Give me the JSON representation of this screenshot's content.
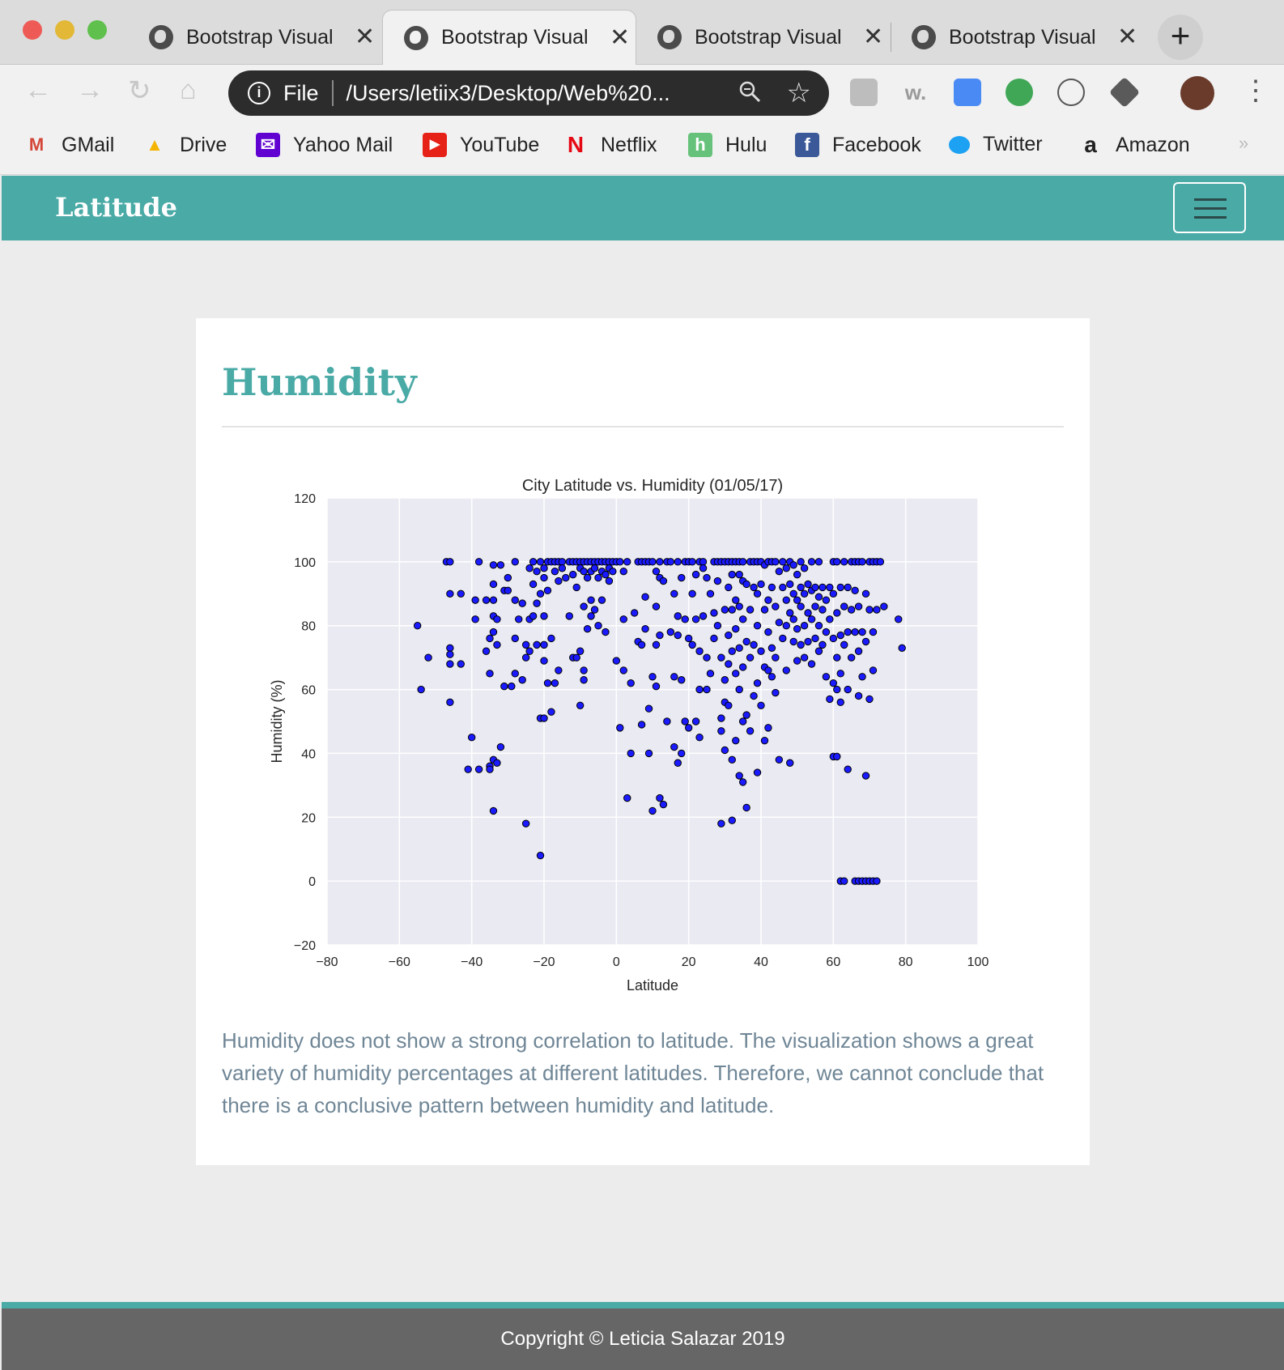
{
  "browser": {
    "tabs": [
      {
        "title": "Bootstrap Visual",
        "active": false
      },
      {
        "title": "Bootstrap Visual",
        "active": true
      },
      {
        "title": "Bootstrap Visual",
        "active": false
      },
      {
        "title": "Bootstrap Visual",
        "active": false
      }
    ],
    "close_glyph": "✕",
    "new_tab_glyph": "+",
    "address": {
      "scheme_label": "File",
      "url": "/Users/letiix3/Desktop/Web%20..."
    },
    "bookmarks": [
      {
        "label": "GMail",
        "icon": "gmail-icon",
        "glyph": "M",
        "color": "#d44638"
      },
      {
        "label": "Drive",
        "icon": "drive-icon",
        "glyph": "▲",
        "color": "#f4b400"
      },
      {
        "label": "Yahoo Mail",
        "icon": "yahoo-mail-icon",
        "glyph": "✉",
        "color": "#6001d2"
      },
      {
        "label": "YouTube",
        "icon": "youtube-icon",
        "glyph": "▶",
        "color": "#e62117"
      },
      {
        "label": "Netflix",
        "icon": "netflix-icon",
        "glyph": "N",
        "color": "#e50914"
      },
      {
        "label": "Hulu",
        "icon": "hulu-icon",
        "glyph": "h",
        "color": "#66c27a"
      },
      {
        "label": "Facebook",
        "icon": "facebook-icon",
        "glyph": "f",
        "color": "#3b5998"
      },
      {
        "label": "Twitter",
        "icon": "twitter-icon",
        "glyph": "🐦",
        "color": "#1da1f2"
      },
      {
        "label": "Amazon",
        "icon": "amazon-icon",
        "glyph": "a",
        "color": "#222222"
      }
    ],
    "bookmarks_overflow": "»"
  },
  "navbar": {
    "brand": "Latitude",
    "color": "#4aaaa6"
  },
  "card": {
    "heading": "Humidity",
    "description": "Humidity does not show a strong correlation to latitude. The visualization shows a great variety of humidity percentages at different latitudes. Therefore, we cannot conclude that there is a conclusive pattern between humidity and latitude."
  },
  "chart_data": {
    "type": "scatter",
    "title": "City Latitude vs. Humidity (01/05/17)",
    "xlabel": "Latitude",
    "ylabel": "Humidity (%)",
    "xlim": [
      -80,
      100
    ],
    "ylim": [
      -20,
      120
    ],
    "xticks": [
      -80,
      -60,
      -40,
      -20,
      0,
      20,
      40,
      60,
      80,
      100
    ],
    "yticks": [
      -20,
      0,
      20,
      40,
      60,
      80,
      100,
      120
    ],
    "grid": true,
    "marker_color": "#1a1aff",
    "points": [
      [
        -55,
        80
      ],
      [
        -54,
        60
      ],
      [
        -52,
        70
      ],
      [
        -47,
        100
      ],
      [
        -46,
        100
      ],
      [
        -46,
        90
      ],
      [
        -46,
        73
      ],
      [
        -46,
        71
      ],
      [
        -46,
        68
      ],
      [
        -46,
        56
      ],
      [
        -43,
        90
      ],
      [
        -43,
        68
      ],
      [
        -41,
        35
      ],
      [
        -40,
        45
      ],
      [
        -39,
        88
      ],
      [
        -39,
        82
      ],
      [
        -38,
        100
      ],
      [
        -38,
        35
      ],
      [
        -36,
        88
      ],
      [
        -36,
        72
      ],
      [
        -35,
        76
      ],
      [
        -35,
        65
      ],
      [
        -35,
        36
      ],
      [
        -35,
        35
      ],
      [
        -34,
        99
      ],
      [
        -34,
        93
      ],
      [
        -34,
        88
      ],
      [
        -34,
        83
      ],
      [
        -34,
        78
      ],
      [
        -34,
        38
      ],
      [
        -34,
        22
      ],
      [
        -33,
        82
      ],
      [
        -33,
        74
      ],
      [
        -33,
        37
      ],
      [
        -32,
        99
      ],
      [
        -32,
        42
      ],
      [
        -31,
        91
      ],
      [
        -31,
        61
      ],
      [
        -30,
        95
      ],
      [
        -30,
        91
      ],
      [
        -29,
        61
      ],
      [
        -28,
        100
      ],
      [
        -28,
        88
      ],
      [
        -28,
        76
      ],
      [
        -28,
        65
      ],
      [
        -27,
        82
      ],
      [
        -26,
        87
      ],
      [
        -26,
        63
      ],
      [
        -25,
        74
      ],
      [
        -25,
        70
      ],
      [
        -25,
        18
      ],
      [
        -24,
        98
      ],
      [
        -24,
        82
      ],
      [
        -24,
        72
      ],
      [
        -23,
        100
      ],
      [
        -23,
        93
      ],
      [
        -23,
        83
      ],
      [
        -22,
        97
      ],
      [
        -22,
        87
      ],
      [
        -22,
        74
      ],
      [
        -21,
        100
      ],
      [
        -21,
        90
      ],
      [
        -21,
        51
      ],
      [
        -21,
        8
      ],
      [
        -20,
        98
      ],
      [
        -20,
        95
      ],
      [
        -20,
        83
      ],
      [
        -20,
        74
      ],
      [
        -20,
        69
      ],
      [
        -20,
        51
      ],
      [
        -19,
        100
      ],
      [
        -19,
        91
      ],
      [
        -19,
        62
      ],
      [
        -18,
        100
      ],
      [
        -18,
        76
      ],
      [
        -18,
        53
      ],
      [
        -17,
        100
      ],
      [
        -17,
        97
      ],
      [
        -17,
        62
      ],
      [
        -16,
        100
      ],
      [
        -16,
        94
      ],
      [
        -16,
        66
      ],
      [
        -15,
        100
      ],
      [
        -15,
        98
      ],
      [
        -14,
        95
      ],
      [
        -13,
        100
      ],
      [
        -13,
        83
      ],
      [
        -12,
        100
      ],
      [
        -12,
        96
      ],
      [
        -12,
        70
      ],
      [
        -11,
        100
      ],
      [
        -11,
        92
      ],
      [
        -11,
        70
      ],
      [
        -10,
        100
      ],
      [
        -10,
        98
      ],
      [
        -10,
        72
      ],
      [
        -10,
        55
      ],
      [
        -9,
        100
      ],
      [
        -9,
        97
      ],
      [
        -9,
        86
      ],
      [
        -9,
        66
      ],
      [
        -9,
        63
      ],
      [
        -8,
        100
      ],
      [
        -8,
        95
      ],
      [
        -8,
        79
      ],
      [
        -7,
        100
      ],
      [
        -7,
        97
      ],
      [
        -7,
        88
      ],
      [
        -7,
        83
      ],
      [
        -6,
        100
      ],
      [
        -6,
        98
      ],
      [
        -6,
        85
      ],
      [
        -5,
        100
      ],
      [
        -5,
        95
      ],
      [
        -5,
        80
      ],
      [
        -4,
        100
      ],
      [
        -4,
        97
      ],
      [
        -4,
        88
      ],
      [
        -3,
        100
      ],
      [
        -3,
        96
      ],
      [
        -3,
        78
      ],
      [
        -2,
        100
      ],
      [
        -2,
        98
      ],
      [
        -2,
        94
      ],
      [
        -1,
        100
      ],
      [
        -1,
        97
      ],
      [
        0,
        100
      ],
      [
        0,
        69
      ],
      [
        1,
        100
      ],
      [
        1,
        48
      ],
      [
        2,
        97
      ],
      [
        2,
        82
      ],
      [
        2,
        66
      ],
      [
        3,
        100
      ],
      [
        3,
        26
      ],
      [
        4,
        62
      ],
      [
        4,
        40
      ],
      [
        5,
        84
      ],
      [
        6,
        100
      ],
      [
        6,
        75
      ],
      [
        7,
        100
      ],
      [
        7,
        49
      ],
      [
        7,
        74
      ],
      [
        8,
        100
      ],
      [
        8,
        89
      ],
      [
        8,
        79
      ],
      [
        9,
        100
      ],
      [
        9,
        54
      ],
      [
        9,
        40
      ],
      [
        10,
        100
      ],
      [
        10,
        64
      ],
      [
        10,
        22
      ],
      [
        11,
        97
      ],
      [
        11,
        86
      ],
      [
        11,
        74
      ],
      [
        11,
        61
      ],
      [
        12,
        100
      ],
      [
        12,
        95
      ],
      [
        12,
        77
      ],
      [
        12,
        26
      ],
      [
        13,
        94
      ],
      [
        13,
        24
      ],
      [
        14,
        100
      ],
      [
        14,
        50
      ],
      [
        15,
        100
      ],
      [
        15,
        78
      ],
      [
        16,
        90
      ],
      [
        16,
        64
      ],
      [
        16,
        42
      ],
      [
        17,
        100
      ],
      [
        17,
        83
      ],
      [
        17,
        77
      ],
      [
        17,
        37
      ],
      [
        18,
        95
      ],
      [
        18,
        63
      ],
      [
        18,
        40
      ],
      [
        19,
        100
      ],
      [
        19,
        82
      ],
      [
        19,
        50
      ],
      [
        20,
        100
      ],
      [
        20,
        76
      ],
      [
        20,
        48
      ],
      [
        21,
        100
      ],
      [
        21,
        90
      ],
      [
        21,
        74
      ],
      [
        22,
        96
      ],
      [
        22,
        82
      ],
      [
        22,
        50
      ],
      [
        23,
        100
      ],
      [
        23,
        72
      ],
      [
        23,
        60
      ],
      [
        23,
        45
      ],
      [
        24,
        100
      ],
      [
        24,
        98
      ],
      [
        24,
        83
      ],
      [
        25,
        95
      ],
      [
        25,
        70
      ],
      [
        25,
        60
      ],
      [
        26,
        90
      ],
      [
        26,
        65
      ],
      [
        27,
        100
      ],
      [
        27,
        84
      ],
      [
        27,
        76
      ],
      [
        28,
        100
      ],
      [
        28,
        94
      ],
      [
        28,
        80
      ],
      [
        29,
        100
      ],
      [
        29,
        70
      ],
      [
        29,
        51
      ],
      [
        29,
        47
      ],
      [
        29,
        18
      ],
      [
        30,
        100
      ],
      [
        30,
        85
      ],
      [
        30,
        63
      ],
      [
        30,
        56
      ],
      [
        30,
        41
      ],
      [
        31,
        100
      ],
      [
        31,
        92
      ],
      [
        31,
        77
      ],
      [
        31,
        68
      ],
      [
        31,
        55
      ],
      [
        32,
        100
      ],
      [
        32,
        96
      ],
      [
        32,
        85
      ],
      [
        32,
        72
      ],
      [
        32,
        38
      ],
      [
        32,
        19
      ],
      [
        33,
        100
      ],
      [
        33,
        88
      ],
      [
        33,
        79
      ],
      [
        33,
        65
      ],
      [
        33,
        44
      ],
      [
        34,
        100
      ],
      [
        34,
        96
      ],
      [
        34,
        86
      ],
      [
        34,
        73
      ],
      [
        34,
        60
      ],
      [
        34,
        33
      ],
      [
        35,
        100
      ],
      [
        35,
        94
      ],
      [
        35,
        82
      ],
      [
        35,
        67
      ],
      [
        35,
        50
      ],
      [
        35,
        31
      ],
      [
        36,
        93
      ],
      [
        36,
        75
      ],
      [
        36,
        52
      ],
      [
        36,
        23
      ],
      [
        37,
        100
      ],
      [
        37,
        85
      ],
      [
        37,
        70
      ],
      [
        37,
        47
      ],
      [
        38,
        100
      ],
      [
        38,
        92
      ],
      [
        38,
        74
      ],
      [
        38,
        58
      ],
      [
        39,
        100
      ],
      [
        39,
        90
      ],
      [
        39,
        80
      ],
      [
        39,
        62
      ],
      [
        39,
        34
      ],
      [
        40,
        100
      ],
      [
        40,
        93
      ],
      [
        40,
        72
      ],
      [
        40,
        55
      ],
      [
        41,
        99
      ],
      [
        41,
        85
      ],
      [
        41,
        67
      ],
      [
        41,
        44
      ],
      [
        42,
        100
      ],
      [
        42,
        88
      ],
      [
        42,
        78
      ],
      [
        42,
        66
      ],
      [
        42,
        48
      ],
      [
        43,
        100
      ],
      [
        43,
        92
      ],
      [
        43,
        73
      ],
      [
        43,
        64
      ],
      [
        44,
        100
      ],
      [
        44,
        86
      ],
      [
        44,
        70
      ],
      [
        44,
        59
      ],
      [
        45,
        97
      ],
      [
        45,
        81
      ],
      [
        45,
        38
      ],
      [
        46,
        100
      ],
      [
        46,
        92
      ],
      [
        46,
        76
      ],
      [
        47,
        98
      ],
      [
        47,
        88
      ],
      [
        47,
        80
      ],
      [
        47,
        66
      ],
      [
        48,
        100
      ],
      [
        48,
        93
      ],
      [
        48,
        84
      ],
      [
        48,
        37
      ],
      [
        49,
        99
      ],
      [
        49,
        90
      ],
      [
        49,
        82
      ],
      [
        49,
        75
      ],
      [
        50,
        96
      ],
      [
        50,
        88
      ],
      [
        50,
        79
      ],
      [
        50,
        69
      ],
      [
        51,
        100
      ],
      [
        51,
        92
      ],
      [
        51,
        86
      ],
      [
        51,
        74
      ],
      [
        52,
        98
      ],
      [
        52,
        90
      ],
      [
        52,
        80
      ],
      [
        52,
        70
      ],
      [
        53,
        93
      ],
      [
        53,
        84
      ],
      [
        53,
        75
      ],
      [
        54,
        100
      ],
      [
        54,
        91
      ],
      [
        54,
        82
      ],
      [
        54,
        68
      ],
      [
        55,
        92
      ],
      [
        55,
        86
      ],
      [
        55,
        76
      ],
      [
        56,
        100
      ],
      [
        56,
        89
      ],
      [
        56,
        80
      ],
      [
        56,
        72
      ],
      [
        57,
        92
      ],
      [
        57,
        85
      ],
      [
        57,
        74
      ],
      [
        58,
        88
      ],
      [
        58,
        78
      ],
      [
        58,
        64
      ],
      [
        59,
        92
      ],
      [
        59,
        82
      ],
      [
        59,
        57
      ],
      [
        60,
        100
      ],
      [
        60,
        90
      ],
      [
        60,
        76
      ],
      [
        60,
        62
      ],
      [
        60,
        39
      ],
      [
        61,
        100
      ],
      [
        61,
        84
      ],
      [
        61,
        70
      ],
      [
        61,
        60
      ],
      [
        61,
        39
      ],
      [
        62,
        92
      ],
      [
        62,
        77
      ],
      [
        62,
        65
      ],
      [
        62,
        56
      ],
      [
        62,
        0
      ],
      [
        63,
        100
      ],
      [
        63,
        86
      ],
      [
        63,
        74
      ],
      [
        63,
        0
      ],
      [
        64,
        92
      ],
      [
        64,
        78
      ],
      [
        64,
        60
      ],
      [
        64,
        35
      ],
      [
        65,
        100
      ],
      [
        65,
        85
      ],
      [
        65,
        70
      ],
      [
        66,
        100
      ],
      [
        66,
        91
      ],
      [
        66,
        78
      ],
      [
        66,
        0
      ],
      [
        67,
        100
      ],
      [
        67,
        86
      ],
      [
        67,
        72
      ],
      [
        67,
        58
      ],
      [
        67,
        0
      ],
      [
        68,
        100
      ],
      [
        68,
        78
      ],
      [
        68,
        64
      ],
      [
        68,
        0
      ],
      [
        69,
        90
      ],
      [
        69,
        75
      ],
      [
        69,
        33
      ],
      [
        69,
        0
      ],
      [
        70,
        100
      ],
      [
        70,
        85
      ],
      [
        70,
        57
      ],
      [
        70,
        0
      ],
      [
        71,
        100
      ],
      [
        71,
        78
      ],
      [
        71,
        66
      ],
      [
        71,
        0
      ],
      [
        72,
        100
      ],
      [
        72,
        85
      ],
      [
        72,
        0
      ],
      [
        73,
        100
      ],
      [
        74,
        86
      ],
      [
        78,
        82
      ],
      [
        79,
        73
      ]
    ]
  }
}
